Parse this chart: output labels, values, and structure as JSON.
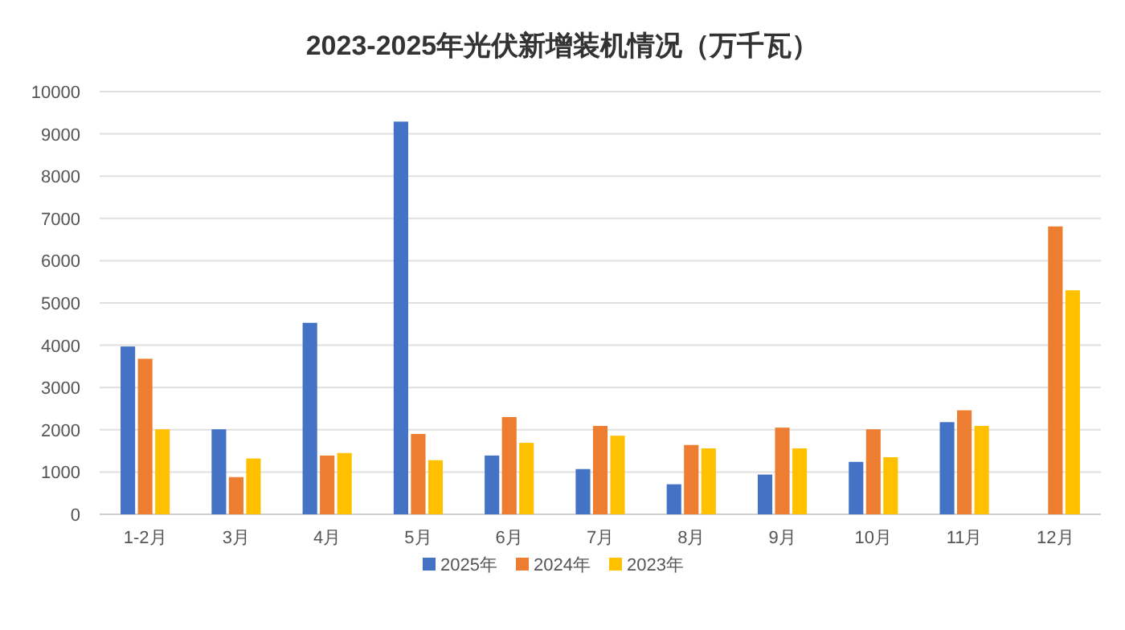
{
  "chart_data": {
    "type": "bar",
    "title": "2023-2025年光伏新增装机情况（万千瓦）",
    "categories": [
      "1-2月",
      "3月",
      "4月",
      "5月",
      "6月",
      "7月",
      "8月",
      "9月",
      "10月",
      "11月",
      "12月"
    ],
    "series": [
      {
        "name": "2025年",
        "color": "#4472c4",
        "values": [
          3970,
          2010,
          4530,
          9290,
          1390,
          1070,
          710,
          940,
          1240,
          2180,
          null
        ]
      },
      {
        "name": "2024年",
        "color": "#ed7d31",
        "values": [
          3680,
          880,
          1390,
          1900,
          2300,
          2090,
          1640,
          2050,
          2010,
          2460,
          6810
        ]
      },
      {
        "name": "2023年",
        "color": "#ffc000",
        "values": [
          2010,
          1320,
          1450,
          1280,
          1690,
          1860,
          1560,
          1560,
          1350,
          2090,
          5300
        ]
      }
    ],
    "ylim": [
      0,
      10000
    ],
    "yticks": [
      0,
      1000,
      2000,
      3000,
      4000,
      5000,
      6000,
      7000,
      8000,
      9000,
      10000
    ],
    "grid": "y",
    "legend": "bottom"
  }
}
